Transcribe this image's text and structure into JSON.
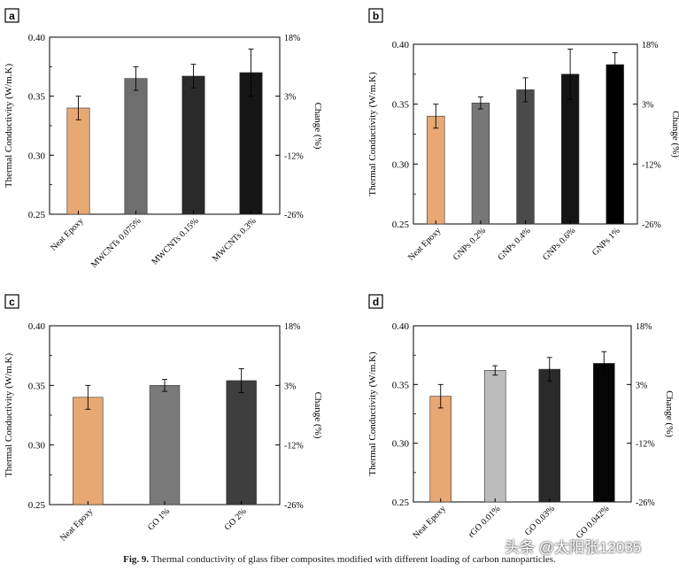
{
  "figure": {
    "caption_label": "Fig. 9.",
    "caption_text": "Thermal conductivity of glass fiber composites modified with different loading of carbon nanoparticles.",
    "watermark": "头条 @太阳张12035"
  },
  "chart_data": [
    {
      "panel": "a",
      "type": "bar",
      "ylabel": "Thermal Conductivity (W/m.K)",
      "y2label": "Change (%)",
      "ylim": [
        0.25,
        0.4
      ],
      "yticks": [
        "0.25",
        "0.30",
        "0.35",
        "0.40"
      ],
      "y2ticks": [
        "-26%",
        "-12%",
        "3%",
        "18%"
      ],
      "categories": [
        "Neat Epoxy",
        "MWCNTs 0.075%",
        "MWCNTs 0.15%",
        "MWCNTs 0.3%"
      ],
      "values": [
        0.34,
        0.365,
        0.367,
        0.37
      ],
      "errors": [
        0.01,
        0.01,
        0.01,
        0.02
      ],
      "colors": [
        "#e8a874",
        "#6e6e6e",
        "#2a2a2a",
        "#161616"
      ]
    },
    {
      "panel": "b",
      "type": "bar",
      "ylabel": "Thermal Conductivity (W/m.K)",
      "y2label": "Change (%)",
      "ylim": [
        0.25,
        0.4
      ],
      "yticks": [
        "0.25",
        "0.30",
        "0.35",
        "0.40"
      ],
      "y2ticks": [
        "-26%",
        "-12%",
        "3%",
        "18%"
      ],
      "categories": [
        "Neat Epoxy",
        "GNPs 0.2%",
        "GNPs 0.4%",
        "GNPs 0.6%",
        "GNPs 1%"
      ],
      "values": [
        0.34,
        0.351,
        0.362,
        0.375,
        0.383
      ],
      "errors": [
        0.01,
        0.005,
        0.01,
        0.021,
        0.01
      ],
      "colors": [
        "#e8a874",
        "#777777",
        "#4a4a4a",
        "#141414",
        "#000000"
      ]
    },
    {
      "panel": "c",
      "type": "bar",
      "ylabel": "Thermal Conductivity (W/m.K)",
      "y2label": "Change (%)",
      "ylim": [
        0.25,
        0.4
      ],
      "yticks": [
        "0.25",
        "0.30",
        "0.35",
        "0.40"
      ],
      "y2ticks": [
        "-26%",
        "-12%",
        "3%",
        "18%"
      ],
      "categories": [
        "Neat Epoxy",
        "GO 1%",
        "GO 2%"
      ],
      "values": [
        0.34,
        0.35,
        0.354
      ],
      "errors": [
        0.01,
        0.005,
        0.01
      ],
      "colors": [
        "#e8a874",
        "#7a7a7a",
        "#3e3e3e"
      ]
    },
    {
      "panel": "d",
      "type": "bar",
      "ylabel": "Thermal Conductivity (W/m.K)",
      "y2label": "Change (%)",
      "ylim": [
        0.25,
        0.4
      ],
      "yticks": [
        "0.25",
        "0.30",
        "0.35",
        "0.40"
      ],
      "y2ticks": [
        "-26%",
        "-12%",
        "3%",
        "18%"
      ],
      "categories": [
        "Neat Epoxy",
        "rGO 0.01%",
        "GO 0.03%",
        "GO 0.042%"
      ],
      "values": [
        0.34,
        0.362,
        0.363,
        0.368
      ],
      "errors": [
        0.01,
        0.004,
        0.01,
        0.01
      ],
      "colors": [
        "#e8a874",
        "#bcbcbc",
        "#2a2a2a",
        "#050505"
      ]
    }
  ]
}
